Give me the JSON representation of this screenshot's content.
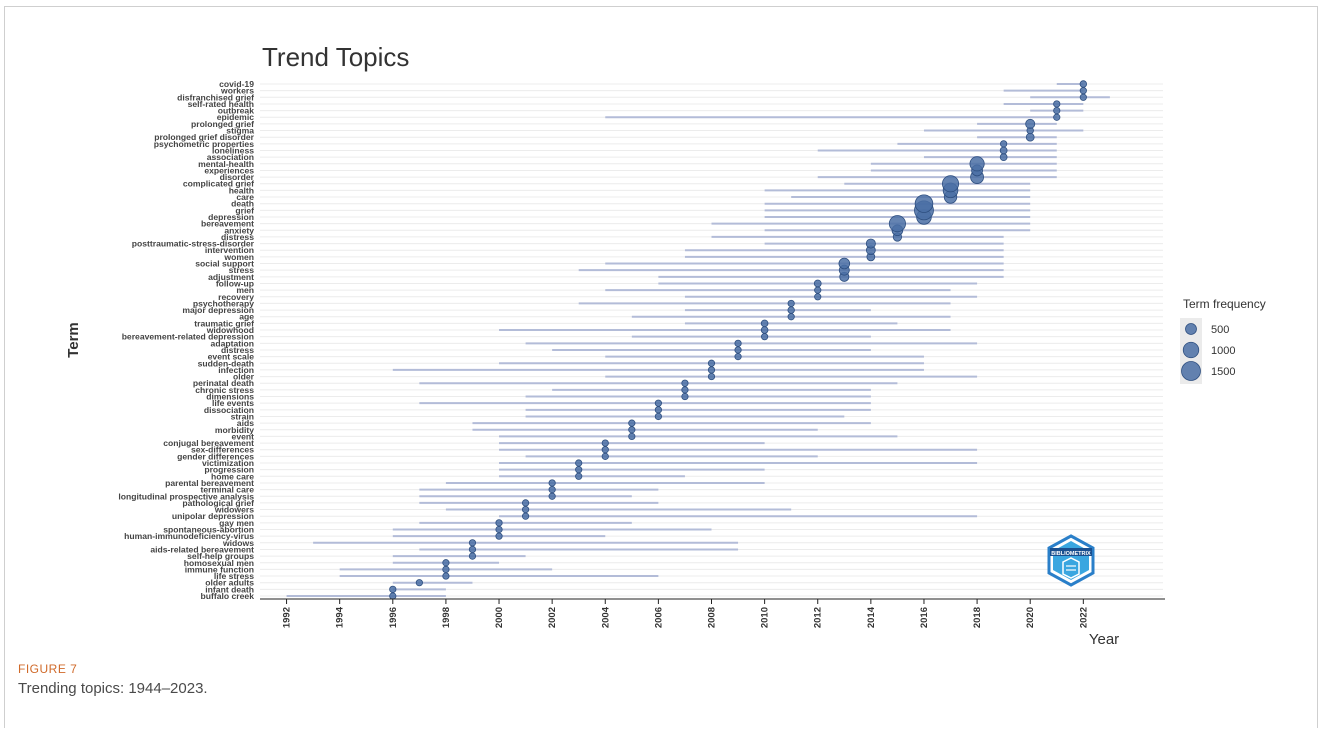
{
  "figure": {
    "label": "FIGURE 7",
    "caption": "Trending topics: 1944–2023."
  },
  "chart_data": {
    "type": "scatter",
    "title": "Trend Topics",
    "xlabel": "Year",
    "ylabel": "Term",
    "xlim": [
      1991,
      2025
    ],
    "x_ticks": [
      1992,
      1994,
      1996,
      1998,
      2000,
      2002,
      2004,
      2006,
      2008,
      2010,
      2012,
      2014,
      2016,
      2018,
      2020,
      2022
    ],
    "legend": {
      "title": "Term frequency",
      "placement": "right",
      "entries": [
        {
          "label": "500",
          "value": 500
        },
        {
          "label": "1000",
          "value": 1000
        },
        {
          "label": "1500",
          "value": 1500
        }
      ]
    },
    "colors": {
      "point": "#4a6fa5",
      "point_edge": "#2e4f80",
      "segment": "#b3bcd8",
      "grid": "#ececec"
    },
    "terms": [
      {
        "term": "buffalo creek",
        "q1": 1992,
        "median": 1996,
        "q3": 1998,
        "freq": 120
      },
      {
        "term": "infant death",
        "q1": 1996,
        "median": 1996,
        "q3": 1998,
        "freq": 110
      },
      {
        "term": "older adults",
        "q1": 1996,
        "median": 1997,
        "q3": 1999,
        "freq": 130
      },
      {
        "term": "life stress",
        "q1": 1994,
        "median": 1998,
        "q3": 2006,
        "freq": 140
      },
      {
        "term": "immune function",
        "q1": 1994,
        "median": 1998,
        "q3": 2002,
        "freq": 150
      },
      {
        "term": "homosexual men",
        "q1": 1996,
        "median": 1998,
        "q3": 2000,
        "freq": 130
      },
      {
        "term": "self-help groups",
        "q1": 1996,
        "median": 1999,
        "q3": 2001,
        "freq": 140
      },
      {
        "term": "aids-related bereavement",
        "q1": 1997,
        "median": 1999,
        "q3": 2009,
        "freq": 150
      },
      {
        "term": "widows",
        "q1": 1993,
        "median": 1999,
        "q3": 2009,
        "freq": 160
      },
      {
        "term": "human-immunodeficiency-virus",
        "q1": 1996,
        "median": 2000,
        "q3": 2004,
        "freq": 140
      },
      {
        "term": "spontaneous-abortion",
        "q1": 1996,
        "median": 2000,
        "q3": 2008,
        "freq": 140
      },
      {
        "term": "gay men",
        "q1": 1997,
        "median": 2000,
        "q3": 2005,
        "freq": 150
      },
      {
        "term": "unipolar depression",
        "q1": 2000,
        "median": 2001,
        "q3": 2018,
        "freq": 140
      },
      {
        "term": "widowers",
        "q1": 1998,
        "median": 2001,
        "q3": 2011,
        "freq": 150
      },
      {
        "term": "pathological grief",
        "q1": 1997,
        "median": 2001,
        "q3": 2006,
        "freq": 150
      },
      {
        "term": "longitudinal prospective analysis",
        "q1": 1997,
        "median": 2002,
        "q3": 2005,
        "freq": 140
      },
      {
        "term": "terminal care",
        "q1": 1997,
        "median": 2002,
        "q3": 2006,
        "freq": 150
      },
      {
        "term": "parental bereavement",
        "q1": 1998,
        "median": 2002,
        "q3": 2010,
        "freq": 150
      },
      {
        "term": "home care",
        "q1": 2000,
        "median": 2003,
        "q3": 2007,
        "freq": 140
      },
      {
        "term": "progression",
        "q1": 2000,
        "median": 2003,
        "q3": 2010,
        "freq": 140
      },
      {
        "term": "victimization",
        "q1": 2000,
        "median": 2003,
        "q3": 2018,
        "freq": 140
      },
      {
        "term": "gender differences",
        "q1": 2001,
        "median": 2004,
        "q3": 2012,
        "freq": 160
      },
      {
        "term": "sex-differences",
        "q1": 2000,
        "median": 2004,
        "q3": 2018,
        "freq": 170
      },
      {
        "term": "conjugal bereavement",
        "q1": 2000,
        "median": 2004,
        "q3": 2010,
        "freq": 160
      },
      {
        "term": "event",
        "q1": 2000,
        "median": 2005,
        "q3": 2015,
        "freq": 140
      },
      {
        "term": "morbidity",
        "q1": 1999,
        "median": 2005,
        "q3": 2012,
        "freq": 150
      },
      {
        "term": "aids",
        "q1": 1999,
        "median": 2005,
        "q3": 2014,
        "freq": 160
      },
      {
        "term": "strain",
        "q1": 2001,
        "median": 2006,
        "q3": 2013,
        "freq": 150
      },
      {
        "term": "dissociation",
        "q1": 2001,
        "median": 2006,
        "q3": 2014,
        "freq": 150
      },
      {
        "term": "life events",
        "q1": 1997,
        "median": 2006,
        "q3": 2014,
        "freq": 160
      },
      {
        "term": "dimensions",
        "q1": 2001,
        "median": 2007,
        "q3": 2014,
        "freq": 140
      },
      {
        "term": "chronic stress",
        "q1": 2002,
        "median": 2007,
        "q3": 2014,
        "freq": 150
      },
      {
        "term": "perinatal death",
        "q1": 1997,
        "median": 2007,
        "q3": 2015,
        "freq": 150
      },
      {
        "term": "older",
        "q1": 2004,
        "median": 2008,
        "q3": 2018,
        "freq": 150
      },
      {
        "term": "infection",
        "q1": 1996,
        "median": 2008,
        "q3": 2016,
        "freq": 150
      },
      {
        "term": "sudden-death",
        "q1": 2000,
        "median": 2008,
        "q3": 2016,
        "freq": 150
      },
      {
        "term": "event scale",
        "q1": 2004,
        "median": 2009,
        "q3": 2016,
        "freq": 160
      },
      {
        "term": "distress",
        "q1": 2002,
        "median": 2009,
        "q3": 2014,
        "freq": 170
      },
      {
        "term": "adaptation",
        "q1": 2001,
        "median": 2009,
        "q3": 2018,
        "freq": 170
      },
      {
        "term": "bereavement-related depression",
        "q1": 2005,
        "median": 2010,
        "q3": 2014,
        "freq": 170
      },
      {
        "term": "widowhood",
        "q1": 2000,
        "median": 2010,
        "q3": 2017,
        "freq": 190
      },
      {
        "term": "traumatic grief",
        "q1": 2007,
        "median": 2010,
        "q3": 2015,
        "freq": 190
      },
      {
        "term": "age",
        "q1": 2005,
        "median": 2011,
        "q3": 2017,
        "freq": 170
      },
      {
        "term": "major depression",
        "q1": 2007,
        "median": 2011,
        "q3": 2014,
        "freq": 180
      },
      {
        "term": "psychotherapy",
        "q1": 2003,
        "median": 2011,
        "q3": 2017,
        "freq": 170
      },
      {
        "term": "recovery",
        "q1": 2007,
        "median": 2012,
        "q3": 2018,
        "freq": 170
      },
      {
        "term": "men",
        "q1": 2004,
        "median": 2012,
        "q3": 2017,
        "freq": 170
      },
      {
        "term": "follow-up",
        "q1": 2006,
        "median": 2012,
        "q3": 2018,
        "freq": 200
      },
      {
        "term": "adjustment",
        "q1": 2006,
        "median": 2013,
        "q3": 2019,
        "freq": 350
      },
      {
        "term": "stress",
        "q1": 2003,
        "median": 2013,
        "q3": 2019,
        "freq": 420
      },
      {
        "term": "social support",
        "q1": 2004,
        "median": 2013,
        "q3": 2019,
        "freq": 480
      },
      {
        "term": "women",
        "q1": 2007,
        "median": 2014,
        "q3": 2019,
        "freq": 260
      },
      {
        "term": "intervention",
        "q1": 2007,
        "median": 2014,
        "q3": 2019,
        "freq": 330
      },
      {
        "term": "posttraumatic-stress-disorder",
        "q1": 2010,
        "median": 2014,
        "q3": 2019,
        "freq": 350
      },
      {
        "term": "distress",
        "q1": 2008,
        "median": 2015,
        "q3": 2019,
        "freq": 300
      },
      {
        "term": "anxiety",
        "q1": 2010,
        "median": 2015,
        "q3": 2020,
        "freq": 480
      },
      {
        "term": "bereavement",
        "q1": 2008,
        "median": 2015,
        "q3": 2020,
        "freq": 1100
      },
      {
        "term": "depression",
        "q1": 2010,
        "median": 2016,
        "q3": 2020,
        "freq": 900
      },
      {
        "term": "grief",
        "q1": 2010,
        "median": 2016,
        "q3": 2020,
        "freq": 1500
      },
      {
        "term": "death",
        "q1": 2010,
        "median": 2016,
        "q3": 2020,
        "freq": 1300
      },
      {
        "term": "care",
        "q1": 2011,
        "median": 2017,
        "q3": 2020,
        "freq": 650
      },
      {
        "term": "health",
        "q1": 2010,
        "median": 2017,
        "q3": 2020,
        "freq": 900
      },
      {
        "term": "complicated grief",
        "q1": 2013,
        "median": 2017,
        "q3": 2020,
        "freq": 1100
      },
      {
        "term": "disorder",
        "q1": 2012,
        "median": 2018,
        "q3": 2021,
        "freq": 700
      },
      {
        "term": "experiences",
        "q1": 2014,
        "median": 2018,
        "q3": 2021,
        "freq": 500
      },
      {
        "term": "mental-health",
        "q1": 2014,
        "median": 2018,
        "q3": 2021,
        "freq": 850
      },
      {
        "term": "association",
        "q1": 2016,
        "median": 2019,
        "q3": 2021,
        "freq": 200
      },
      {
        "term": "loneliness",
        "q1": 2012,
        "median": 2019,
        "q3": 2021,
        "freq": 200
      },
      {
        "term": "psychometric properties",
        "q1": 2015,
        "median": 2019,
        "q3": 2021,
        "freq": 170
      },
      {
        "term": "prolonged grief disorder",
        "q1": 2018,
        "median": 2020,
        "q3": 2021,
        "freq": 260
      },
      {
        "term": "stigma",
        "q1": 2016,
        "median": 2020,
        "q3": 2022,
        "freq": 180
      },
      {
        "term": "prolonged grief",
        "q1": 2018,
        "median": 2020,
        "q3": 2021,
        "freq": 350
      },
      {
        "term": "epidemic",
        "q1": 2004,
        "median": 2021,
        "q3": 2021,
        "freq": 150
      },
      {
        "term": "outbreak",
        "q1": 2020,
        "median": 2021,
        "q3": 2022,
        "freq": 150
      },
      {
        "term": "self-rated health",
        "q1": 2019,
        "median": 2021,
        "q3": 2022,
        "freq": 150
      },
      {
        "term": "disfranchised grief",
        "q1": 2020,
        "median": 2022,
        "q3": 2023,
        "freq": 160
      },
      {
        "term": "workers",
        "q1": 2019,
        "median": 2022,
        "q3": 2022,
        "freq": 170
      },
      {
        "term": "covid-19",
        "q1": 2021,
        "median": 2022,
        "q3": 2022,
        "freq": 180
      }
    ]
  },
  "logo": {
    "text": "BIBLIOMETRIX"
  }
}
